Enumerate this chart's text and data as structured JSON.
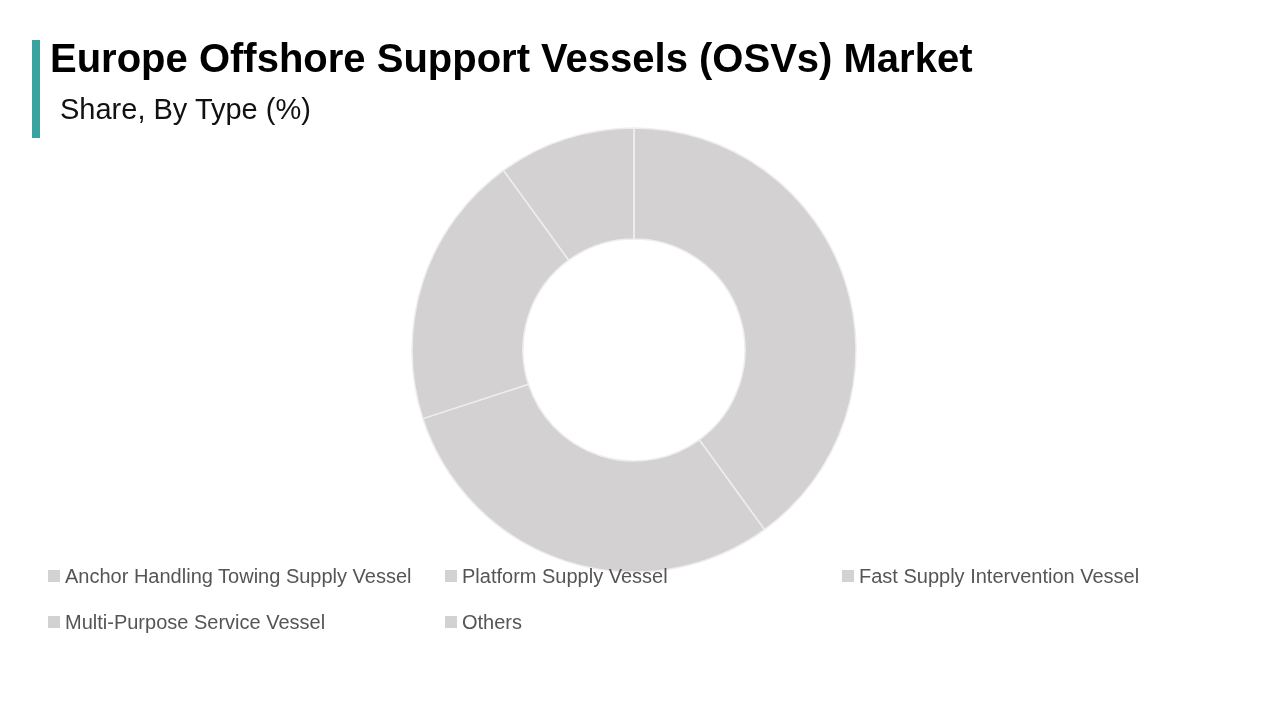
{
  "chart_data": {
    "type": "donut",
    "title": "Europe Offshore Support Vessels (OSVs) Market",
    "subtitle": "Share, By Type (%)",
    "categories": [
      "Anchor Handling Towing Supply Vessel",
      "Platform Supply Vessel",
      "Fast Supply Intervention Vessel",
      "Multi-Purpose Service Vessel",
      "Others"
    ],
    "values": [
      40,
      30,
      20,
      10,
      0
    ],
    "colors": [
      "#d3d1d2",
      "#d3d1d2",
      "#d3d1d2",
      "#d3d1d2",
      "#d3d1d2"
    ],
    "legend": "bottom"
  }
}
